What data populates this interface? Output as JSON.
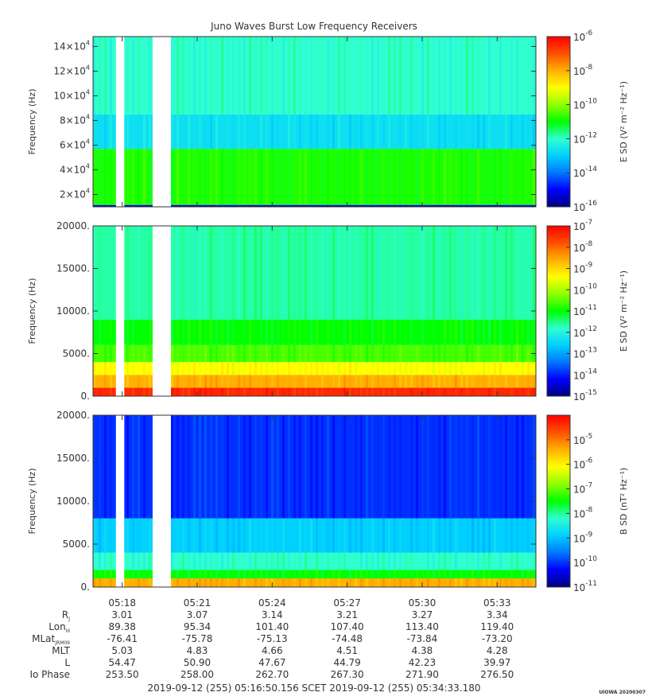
{
  "title": "Juno Waves Burst Low Frequency Receivers",
  "credit": "UIOWA 20200307",
  "colors": {
    "scale": [
      "#00007f",
      "#0000ff",
      "#0078ff",
      "#00d0ff",
      "#30ffd0",
      "#00ff00",
      "#90ff00",
      "#ffff00",
      "#ffb000",
      "#ff5000",
      "#ff0000"
    ]
  },
  "chart_data": [
    {
      "type": "heatmap",
      "ylabel": "Frequency (Hz)",
      "ylim": [
        10000,
        148000
      ],
      "yticks": [
        {
          "v": 20000,
          "base": "2×10",
          "exp": "4"
        },
        {
          "v": 40000,
          "base": "4×10",
          "exp": "4"
        },
        {
          "v": 60000,
          "base": "6×10",
          "exp": "4"
        },
        {
          "v": 80000,
          "base": "8×10",
          "exp": "4"
        },
        {
          "v": 100000,
          "base": "10×10",
          "exp": "4"
        },
        {
          "v": 120000,
          "base": "12×10",
          "exp": "4"
        },
        {
          "v": 140000,
          "base": "14×10",
          "exp": "4"
        }
      ],
      "colorbar": {
        "label": "E SD (V² m⁻² Hz⁻¹)",
        "range_exp": [
          -16,
          -6
        ],
        "ticks": [
          {
            "exp": "-16"
          },
          {
            "exp": "-14"
          },
          {
            "exp": "-12"
          },
          {
            "exp": "-10"
          },
          {
            "exp": "-8"
          },
          {
            "exp": "-6"
          }
        ]
      },
      "bands": [
        {
          "from": 10000,
          "to": 11500,
          "level": 0.08
        },
        {
          "from": 11500,
          "to": 57000,
          "level": 0.52
        },
        {
          "from": 57000,
          "to": 85000,
          "level": 0.33
        },
        {
          "from": 85000,
          "to": 148000,
          "level": 0.4
        }
      ]
    },
    {
      "type": "heatmap",
      "ylabel": "Frequency (Hz)",
      "ylim": [
        0,
        20000
      ],
      "yticks": [
        {
          "v": 0,
          "label": "0."
        },
        {
          "v": 5000,
          "label": "5000."
        },
        {
          "v": 10000,
          "label": "10000."
        },
        {
          "v": 15000,
          "label": "15000."
        },
        {
          "v": 20000,
          "label": "20000."
        }
      ],
      "colorbar": {
        "label": "E SD (V² m⁻² Hz⁻¹)",
        "range_exp": [
          -15,
          -7
        ],
        "ticks": [
          {
            "exp": "-15"
          },
          {
            "exp": "-14"
          },
          {
            "exp": "-13"
          },
          {
            "exp": "-12"
          },
          {
            "exp": "-11"
          },
          {
            "exp": "-10"
          },
          {
            "exp": "-9"
          },
          {
            "exp": "-8"
          },
          {
            "exp": "-7"
          }
        ]
      },
      "bands": [
        {
          "from": 0,
          "to": 1000,
          "level": 0.95
        },
        {
          "from": 1000,
          "to": 2500,
          "level": 0.8
        },
        {
          "from": 2500,
          "to": 4000,
          "level": 0.7
        },
        {
          "from": 4000,
          "to": 6000,
          "level": 0.55
        },
        {
          "from": 6000,
          "to": 9000,
          "level": 0.5
        },
        {
          "from": 9000,
          "to": 20000,
          "level": 0.42
        }
      ]
    },
    {
      "type": "heatmap",
      "ylabel": "Frequency (Hz)",
      "ylim": [
        0,
        20000
      ],
      "yticks": [
        {
          "v": 0,
          "label": "0."
        },
        {
          "v": 5000,
          "label": "5000."
        },
        {
          "v": 10000,
          "label": "10000."
        },
        {
          "v": 15000,
          "label": "15000."
        },
        {
          "v": 20000,
          "label": "20000."
        }
      ],
      "colorbar": {
        "label": "B SD (nT² Hz⁻¹)",
        "range_exp": [
          -11,
          -4
        ],
        "ticks": [
          {
            "exp": "-11"
          },
          {
            "exp": "-10"
          },
          {
            "exp": "-9"
          },
          {
            "exp": "-8"
          },
          {
            "exp": "-7"
          },
          {
            "exp": "-6"
          },
          {
            "exp": "-5"
          }
        ]
      },
      "bands": [
        {
          "from": 0,
          "to": 1000,
          "level": 0.8
        },
        {
          "from": 1000,
          "to": 2000,
          "level": 0.5
        },
        {
          "from": 2000,
          "to": 4000,
          "level": 0.4
        },
        {
          "from": 4000,
          "to": 8000,
          "level": 0.3
        },
        {
          "from": 8000,
          "to": 20000,
          "level": 0.14
        }
      ]
    }
  ],
  "time_axis": {
    "range": [
      "05:16:50",
      "05:34:33"
    ],
    "major": [
      "05:18",
      "05:21",
      "05:24",
      "05:27",
      "05:30",
      "05:33"
    ],
    "gaps": [
      [
        "05:17:45",
        "05:18:05"
      ],
      [
        "05:19:13",
        "05:19:57"
      ]
    ],
    "rows": [
      {
        "label": "R",
        "sub": "J",
        "values": [
          "3.01",
          "3.07",
          "3.14",
          "3.21",
          "3.27",
          "3.34"
        ]
      },
      {
        "label": "Lon",
        "sub": "III",
        "values": [
          "89.38",
          "95.34",
          "101.40",
          "107.40",
          "113.40",
          "119.40"
        ]
      },
      {
        "label": "MLat",
        "sub": "JRM09",
        "values": [
          "-76.41",
          "-75.78",
          "-75.13",
          "-74.48",
          "-73.84",
          "-73.20"
        ]
      },
      {
        "label": "MLT",
        "sub": "",
        "values": [
          "5.03",
          "4.83",
          "4.66",
          "4.51",
          "4.38",
          "4.28"
        ]
      },
      {
        "label": "L",
        "sub": "",
        "values": [
          "54.47",
          "50.90",
          "47.67",
          "44.79",
          "42.23",
          "39.97"
        ]
      },
      {
        "label": "Io Phase",
        "sub": "",
        "values": [
          "253.50",
          "258.00",
          "262.70",
          "267.30",
          "271.90",
          "276.50"
        ]
      }
    ],
    "footer": "2019-09-12 (255) 05:16:50.156    SCET    2019-09-12 (255) 05:34:33.180"
  }
}
